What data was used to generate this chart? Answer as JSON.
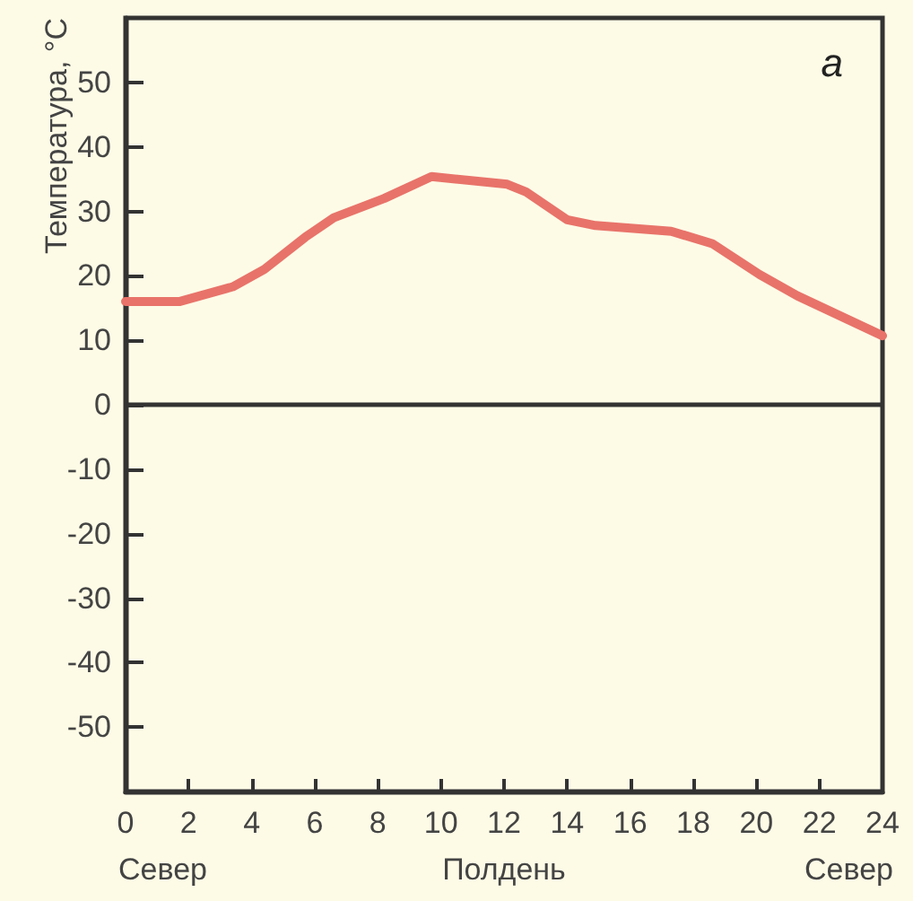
{
  "chart_data": {
    "type": "line",
    "ylabel": "Температура, °C",
    "x": [
      0,
      1.7,
      3.4,
      4.4,
      5.7,
      6.6,
      8.2,
      9.7,
      12.1,
      12.7,
      14,
      14.9,
      17.3,
      18.6,
      20.1,
      21.3,
      24
    ],
    "series": [
      {
        "color": "#e8736a",
        "values": [
          16,
          16,
          18.3,
          21,
          26,
          29,
          32,
          35.4,
          34.2,
          33,
          28.7,
          27.8,
          26.9,
          25,
          20.2,
          16.9,
          10.7
        ]
      }
    ],
    "xlim": [
      0,
      24
    ],
    "xticks": [
      0,
      2,
      4,
      6,
      8,
      10,
      12,
      14,
      16,
      18,
      20,
      22,
      24
    ],
    "ylim": [
      -60,
      60
    ],
    "yticks": [
      -50,
      -40,
      -30,
      -20,
      -10,
      0,
      10,
      20,
      30,
      40,
      50
    ],
    "ref_lines": [
      {
        "axis": "y",
        "value": 0,
        "color": "#333333"
      }
    ],
    "marker": "none",
    "line_style": "solid",
    "annotations": [
      "а",
      "Север",
      "Полдень",
      "Север"
    ]
  }
}
